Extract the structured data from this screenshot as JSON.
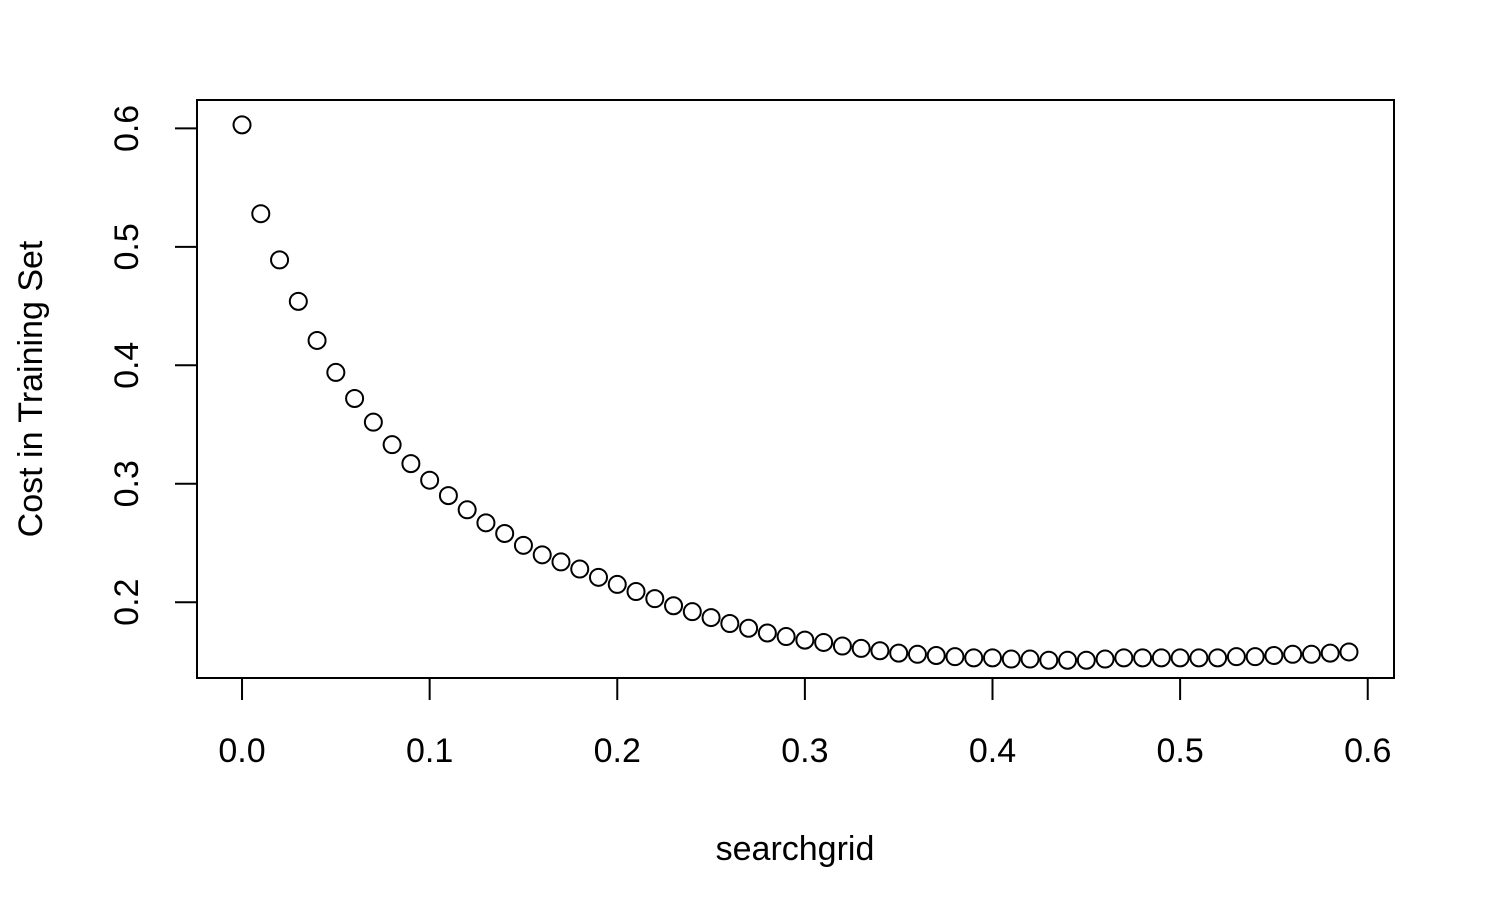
{
  "chart_data": {
    "type": "scatter",
    "title": "",
    "xlabel": "searchgrid",
    "ylabel": "Cost in Training Set",
    "xlim": [
      -0.024,
      0.614
    ],
    "ylim": [
      0.136,
      0.624
    ],
    "xticks": [
      0.0,
      0.1,
      0.2,
      0.3,
      0.4,
      0.5,
      0.6
    ],
    "xtick_labels": [
      "0.0",
      "0.1",
      "0.2",
      "0.3",
      "0.4",
      "0.5",
      "0.6"
    ],
    "yticks": [
      0.2,
      0.3,
      0.4,
      0.5,
      0.6
    ],
    "ytick_labels": [
      "0.2",
      "0.3",
      "0.4",
      "0.5",
      "0.6"
    ],
    "grid": false,
    "marker": "open-circle",
    "color": "#000000",
    "series": [
      {
        "x": [
          0.0,
          0.01,
          0.02,
          0.03,
          0.04,
          0.05,
          0.06,
          0.07,
          0.08,
          0.09,
          0.1,
          0.11,
          0.12,
          0.13,
          0.14,
          0.15,
          0.16,
          0.17,
          0.18,
          0.19,
          0.2,
          0.21,
          0.22,
          0.23,
          0.24,
          0.25,
          0.26,
          0.27,
          0.28,
          0.29,
          0.3,
          0.31,
          0.32,
          0.33,
          0.34,
          0.35,
          0.36,
          0.37,
          0.38,
          0.39,
          0.4,
          0.41,
          0.42,
          0.43,
          0.44,
          0.45,
          0.46,
          0.47,
          0.48,
          0.49,
          0.5,
          0.51,
          0.52,
          0.53,
          0.54,
          0.55,
          0.56,
          0.57,
          0.58,
          0.59
        ],
        "y": [
          0.603,
          0.528,
          0.489,
          0.454,
          0.421,
          0.394,
          0.372,
          0.352,
          0.333,
          0.317,
          0.303,
          0.29,
          0.278,
          0.267,
          0.258,
          0.248,
          0.24,
          0.234,
          0.228,
          0.221,
          0.215,
          0.209,
          0.203,
          0.197,
          0.192,
          0.187,
          0.182,
          0.178,
          0.174,
          0.171,
          0.168,
          0.166,
          0.163,
          0.161,
          0.159,
          0.157,
          0.156,
          0.155,
          0.154,
          0.153,
          0.153,
          0.152,
          0.152,
          0.151,
          0.151,
          0.151,
          0.152,
          0.153,
          0.153,
          0.153,
          0.153,
          0.153,
          0.153,
          0.154,
          0.154,
          0.155,
          0.156,
          0.156,
          0.157,
          0.158
        ]
      }
    ]
  }
}
